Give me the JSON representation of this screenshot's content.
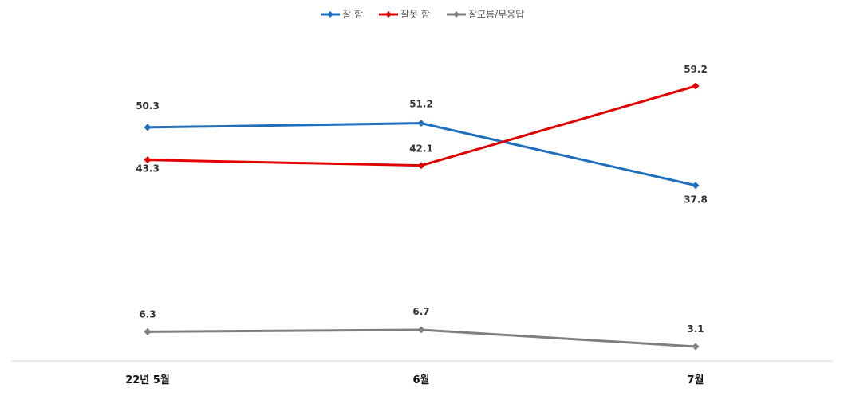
{
  "chart_data": {
    "type": "line",
    "categories": [
      "22년 5월",
      "6월",
      "7월"
    ],
    "series": [
      {
        "name": "잘 함",
        "color": "#1f6fbf",
        "marker": "diamond",
        "values": [
          50.3,
          51.2,
          37.8
        ],
        "labels": [
          "50.3",
          "51.2",
          "37.8"
        ]
      },
      {
        "name": "잘못 함",
        "color": "#e00000",
        "marker": "diamond",
        "values": [
          43.3,
          42.1,
          59.2
        ],
        "labels": [
          "43.3",
          "42.1",
          "59.2"
        ]
      },
      {
        "name": "잘모름/무응답",
        "color": "#7f7f7f",
        "marker": "diamond",
        "values": [
          6.3,
          6.7,
          3.1
        ],
        "labels": [
          "6.3",
          "6.7",
          "3.1"
        ]
      }
    ],
    "legend_position": "top-center",
    "grid": false
  }
}
